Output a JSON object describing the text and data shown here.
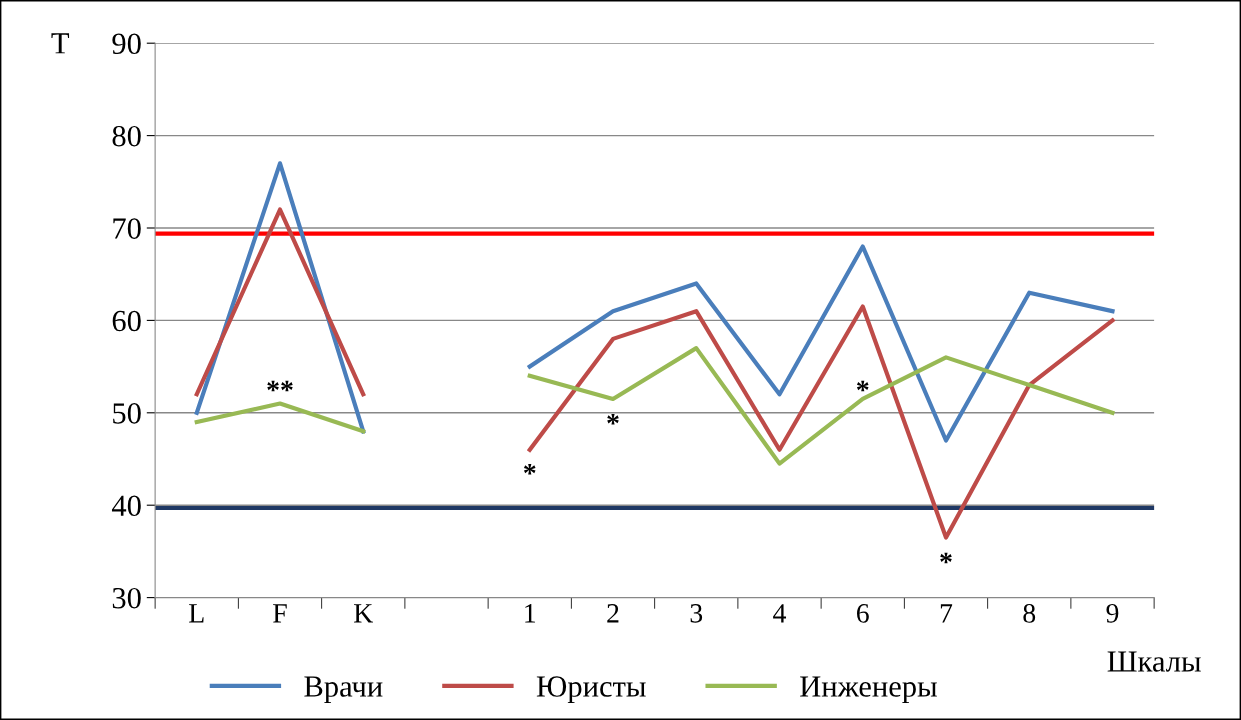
{
  "chart_data": {
    "type": "line",
    "ylabel": "T",
    "xlabel": "Шкалы",
    "categories": [
      "L",
      "F",
      "K",
      null,
      "1",
      "2",
      "3",
      "4",
      "6",
      "7",
      "8",
      "9"
    ],
    "series": [
      {
        "name": "Врачи",
        "color": "#4a7ebb",
        "values": [
          50,
          77,
          48,
          null,
          55,
          61,
          64,
          52,
          68,
          47,
          63,
          61
        ]
      },
      {
        "name": "Юристы",
        "color": "#be4b48",
        "values": [
          52,
          72,
          52,
          null,
          46,
          58,
          61,
          46,
          61.5,
          36.5,
          53,
          60
        ]
      },
      {
        "name": "Инженеры",
        "color": "#98b954",
        "values": [
          49,
          51,
          48,
          null,
          54,
          51.5,
          57,
          44.5,
          51.5,
          56,
          53,
          50
        ]
      }
    ],
    "ylim": [
      30,
      90
    ],
    "yticks": [
      30,
      40,
      50,
      60,
      70,
      80,
      90
    ],
    "grid": "y",
    "legend": "bottom",
    "marker": "none",
    "line_style": "solid",
    "ref_lines": [
      {
        "axis": "y",
        "value": 69.4,
        "color": "#ff0000"
      },
      {
        "axis": "y",
        "value": 39.7,
        "color": "#1f3864"
      }
    ],
    "annotations": [
      "**",
      "*",
      "*",
      "*",
      "*"
    ]
  }
}
